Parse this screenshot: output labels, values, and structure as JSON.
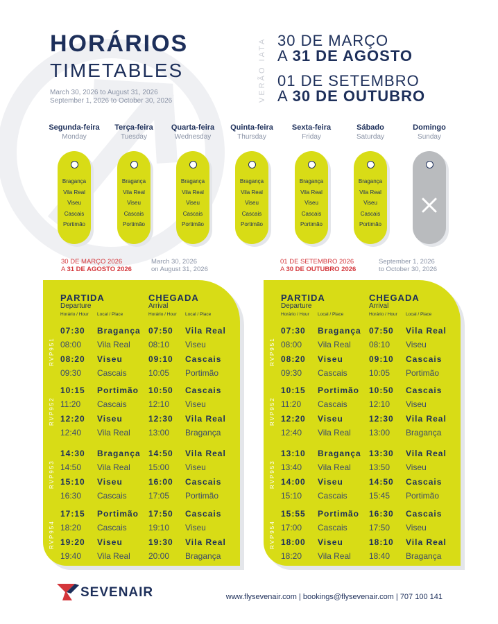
{
  "header": {
    "title": "HORÁRIOS",
    "subtitle": "TIMETABLES",
    "date_line_1": "March 30, 2026 to August 31, 2026",
    "date_line_2": "September 1, 2026 to October 30, 2026",
    "season_label": "VERÃO IATA",
    "period1_line1": "30 DE MARÇO",
    "period1_prefix": "A",
    "period1_end": "31 DE AGOSTO",
    "period2_line1": "01 DE SETEMBRO",
    "period2_prefix": "A",
    "period2_end": "30 DE OUTUBRO"
  },
  "days": [
    {
      "pt": "Segunda-feira",
      "en": "Monday",
      "operating": true
    },
    {
      "pt": "Terça-feira",
      "en": "Tuesday",
      "operating": true
    },
    {
      "pt": "Quarta-feira",
      "en": "Wednesday",
      "operating": true
    },
    {
      "pt": "Quinta-feira",
      "en": "Thursday",
      "operating": true
    },
    {
      "pt": "Sexta-feira",
      "en": "Friday",
      "operating": true
    },
    {
      "pt": "Sábado",
      "en": "Saturday",
      "operating": true
    },
    {
      "pt": "Domingo",
      "en": "Sunday",
      "operating": false
    }
  ],
  "route_cities": [
    "Bragança",
    "Vila Real",
    "Viseu",
    "Cascais",
    "Portimão"
  ],
  "colors": {
    "accent_yellow": "#d8dc16",
    "navy": "#1d2f5a",
    "red": "#d4363b",
    "grey_pill": "#b9bbbe"
  },
  "range_labels": {
    "left_pt_1": "30 DE MARÇO 2026",
    "left_pt_prefix": "A",
    "left_pt_2": "31 DE AGOSTO 2026",
    "left_en_1": "March 30, 2026",
    "left_en_2": "on August 31, 2026",
    "right_pt_1": "01 DE SETEMBRO 2026",
    "right_pt_prefix": "A",
    "right_pt_2": "30 DE OUTUBRO 2026",
    "right_en_1": "September 1, 2026",
    "right_en_2": "to October 30, 2026"
  },
  "table_labels": {
    "departure_pt": "PARTIDA",
    "departure_en": "Departure",
    "arrival_pt": "CHEGADA",
    "arrival_en": "Arrival",
    "time_header": "Horário / Hour",
    "place_header": "Local / Place"
  },
  "tables": [
    {
      "flights": [
        {
          "code": "RVP951",
          "legs": [
            [
              "07:30",
              "Bragança",
              "07:50",
              "Vila Real"
            ],
            [
              "08:00",
              "Vila Real",
              "08:10",
              "Viseu"
            ],
            [
              "08:20",
              "Viseu",
              "09:10",
              "Cascais"
            ],
            [
              "09:30",
              "Cascais",
              "10:05",
              "Portimão"
            ]
          ]
        },
        {
          "code": "RVP952",
          "legs": [
            [
              "10:15",
              "Portimão",
              "10:50",
              "Cascais"
            ],
            [
              "11:20",
              "Cascais",
              "12:10",
              "Viseu"
            ],
            [
              "12:20",
              "Viseu",
              "12:30",
              "Vila Real"
            ],
            [
              "12:40",
              "Vila Real",
              "13:00",
              "Bragança"
            ]
          ]
        },
        {
          "code": "RVP953",
          "legs": [
            [
              "14:30",
              "Bragança",
              "14:50",
              "Vila Real"
            ],
            [
              "14:50",
              "Vila Real",
              "15:00",
              "Viseu"
            ],
            [
              "15:10",
              "Viseu",
              "16:00",
              "Cascais"
            ],
            [
              "16:30",
              "Cascais",
              "17:05",
              "Portimão"
            ]
          ]
        },
        {
          "code": "RVP954",
          "legs": [
            [
              "17:15",
              "Portimão",
              "17:50",
              "Cascais"
            ],
            [
              "18:20",
              "Cascais",
              "19:10",
              "Viseu"
            ],
            [
              "19:20",
              "Viseu",
              "19:30",
              "Vila Real"
            ],
            [
              "19:40",
              "Vila Real",
              "20:00",
              "Bragança"
            ]
          ]
        }
      ]
    },
    {
      "flights": [
        {
          "code": "RVP951",
          "legs": [
            [
              "07:30",
              "Bragança",
              "07:50",
              "Vila Real"
            ],
            [
              "08:00",
              "Vila Real",
              "08:10",
              "Viseu"
            ],
            [
              "08:20",
              "Viseu",
              "09:10",
              "Cascais"
            ],
            [
              "09:30",
              "Cascais",
              "10:05",
              "Portimão"
            ]
          ]
        },
        {
          "code": "RVP952",
          "legs": [
            [
              "10:15",
              "Portimão",
              "10:50",
              "Cascais"
            ],
            [
              "11:20",
              "Cascais",
              "12:10",
              "Viseu"
            ],
            [
              "12:20",
              "Viseu",
              "12:30",
              "Vila Real"
            ],
            [
              "12:40",
              "Vila Real",
              "13:00",
              "Bragança"
            ]
          ]
        },
        {
          "code": "RVP953",
          "legs": [
            [
              "13:10",
              "Bragança",
              "13:30",
              "Vila Real"
            ],
            [
              "13:40",
              "Vila Real",
              "13:50",
              "Viseu"
            ],
            [
              "14:00",
              "Viseu",
              "14:50",
              "Cascais"
            ],
            [
              "15:10",
              "Cascais",
              "15:45",
              "Portimão"
            ]
          ]
        },
        {
          "code": "RVP954",
          "legs": [
            [
              "15:55",
              "Portimão",
              "16:30",
              "Cascais"
            ],
            [
              "17:00",
              "Cascais",
              "17:50",
              "Viseu"
            ],
            [
              "18:00",
              "Viseu",
              "18:10",
              "Vila Real"
            ],
            [
              "18:20",
              "Vila Real",
              "18:40",
              "Bragança"
            ]
          ]
        }
      ]
    }
  ],
  "brand": {
    "name": "SEVENAIR"
  },
  "footer": {
    "text": "www.flysevenair.com  |  bookings@flysevenair.com  |  707 100 141"
  }
}
